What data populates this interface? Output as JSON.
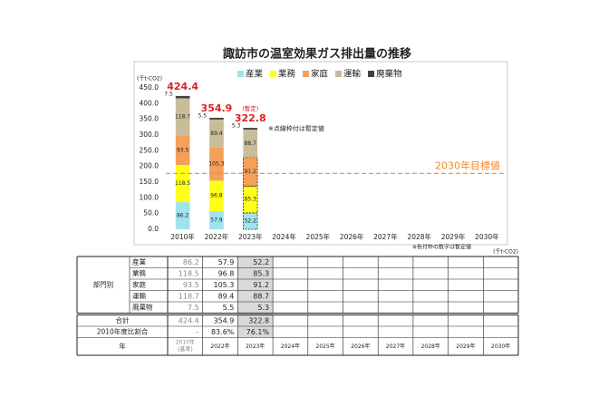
{
  "chart_data": {
    "type": "stacked_bar",
    "title": "諏訪市の温室効果ガス排出量の推移",
    "unit_label": "(千t-CO2)",
    "categories": [
      "2010年",
      "2022年",
      "2023年",
      "2024年",
      "2025年",
      "2026年",
      "2027年",
      "2028年",
      "2029年",
      "2030年"
    ],
    "series": [
      {
        "name": "産業",
        "color": "#9fe3ee",
        "values": [
          86.2,
          57.9,
          52.2,
          null,
          null,
          null,
          null,
          null,
          null,
          null
        ]
      },
      {
        "name": "業務",
        "color": "#ffff1a",
        "values": [
          118.5,
          96.8,
          85.3,
          null,
          null,
          null,
          null,
          null,
          null,
          null
        ]
      },
      {
        "name": "家庭",
        "color": "#f4a05a",
        "values": [
          93.5,
          105.3,
          91.2,
          null,
          null,
          null,
          null,
          null,
          null,
          null
        ]
      },
      {
        "name": "運輸",
        "color": "#c8bd98",
        "values": [
          118.7,
          89.4,
          88.7,
          null,
          null,
          null,
          null,
          null,
          null,
          null
        ]
      },
      {
        "name": "廃棄物",
        "color": "#404040",
        "values": [
          7.5,
          5.5,
          5.3,
          null,
          null,
          null,
          null,
          null,
          null,
          null
        ]
      }
    ],
    "totals": [
      424.4,
      354.9,
      322.8,
      null,
      null,
      null,
      null,
      null,
      null,
      null
    ],
    "provisional": [
      false,
      false,
      true,
      false,
      false,
      false,
      false,
      false,
      false,
      false
    ],
    "provisional_label": "(暫定)",
    "note": "※点線枠付は暫定値",
    "target": {
      "label": "2030年目標値",
      "value": 178,
      "color": "#f08a30"
    },
    "ylim": [
      0,
      450
    ],
    "yticks": [
      {
        "value": 0,
        "label": "0.0"
      },
      {
        "value": 50,
        "label": "50.0"
      },
      {
        "value": 100,
        "label": "100.0"
      },
      {
        "value": 150,
        "label": "150.0"
      },
      {
        "value": 200,
        "label": "200.0"
      },
      {
        "value": 250,
        "label": "250.0"
      },
      {
        "value": 300,
        "label": "300.0"
      },
      {
        "value": 350,
        "label": "350.0"
      },
      {
        "value": 400,
        "label": "400.0"
      },
      {
        "value": 450,
        "label": "450.0"
      }
    ],
    "grid": false
  },
  "table": {
    "note": "※色付枠の数字は暫定値",
    "unit_label": "(千t-CO2)",
    "group_label": "部門別",
    "rows": [
      {
        "label": "産業",
        "values": [
          86.2,
          57.9,
          52.2
        ]
      },
      {
        "label": "業務",
        "values": [
          118.5,
          96.8,
          85.3
        ]
      },
      {
        "label": "家庭",
        "values": [
          93.5,
          105.3,
          91.2
        ]
      },
      {
        "label": "運輸",
        "values": [
          118.7,
          89.4,
          88.7
        ]
      },
      {
        "label": "廃棄物",
        "values": [
          7.5,
          5.5,
          5.3
        ]
      }
    ],
    "total": {
      "label": "合計",
      "values": [
        424.4,
        354.9,
        322.8
      ]
    },
    "ratio": {
      "label": "2010年度比割合",
      "values": [
        "–",
        "83.6%",
        "76.1%"
      ]
    },
    "year_label": "年",
    "years": [
      "2010年",
      "2022年",
      "2023年",
      "2024年",
      "2025年",
      "2026年",
      "2027年",
      "2028年",
      "2029年",
      "2030年"
    ],
    "base_note": "(基準)"
  }
}
